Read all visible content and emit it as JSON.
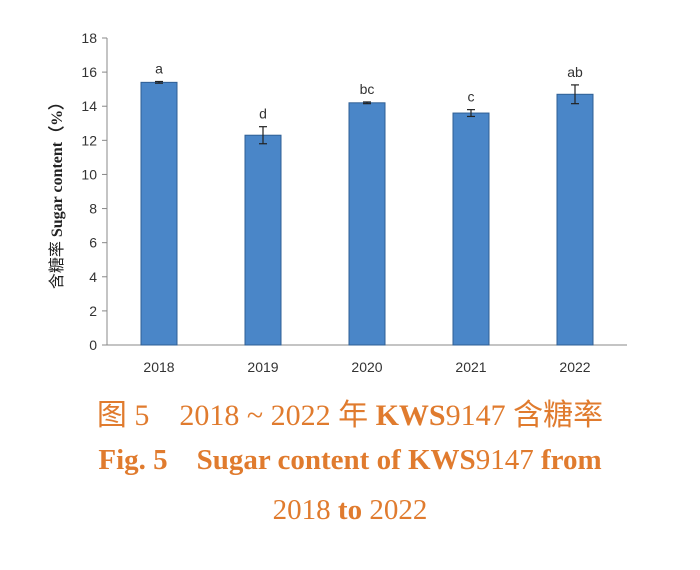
{
  "caption": {
    "cn_fig": "图 5",
    "cn_text_a": "2018 ~ 2022 年",
    "cn_bold": "KWS",
    "cn_num": "9147",
    "cn_text_b": "含糖率",
    "en_fig": "Fig. 5",
    "en_text": "Sugar content of KWS",
    "en_num": "9147",
    "en_from": "from",
    "en_line2_a": "2018",
    "en_line2_to": "to",
    "en_line2_b": "2022"
  },
  "chart_data": {
    "type": "bar",
    "title": "",
    "xlabel": "",
    "ylabel_cn": "含糖率",
    "ylabel_en": "Sugar content（%）",
    "ylim": [
      0,
      18
    ],
    "yticks": [
      0,
      2,
      4,
      6,
      8,
      10,
      12,
      14,
      16,
      18
    ],
    "categories": [
      "2018",
      "2019",
      "2020",
      "2021",
      "2022"
    ],
    "values": [
      15.4,
      12.3,
      14.2,
      13.6,
      14.7
    ],
    "errors": [
      0.05,
      0.5,
      0.05,
      0.2,
      0.55
    ],
    "labels": [
      "a",
      "d",
      "bc",
      "c",
      "ab"
    ],
    "grid": false,
    "bar_color": "#4a86c8",
    "bar_edge": "#2f5f94"
  }
}
